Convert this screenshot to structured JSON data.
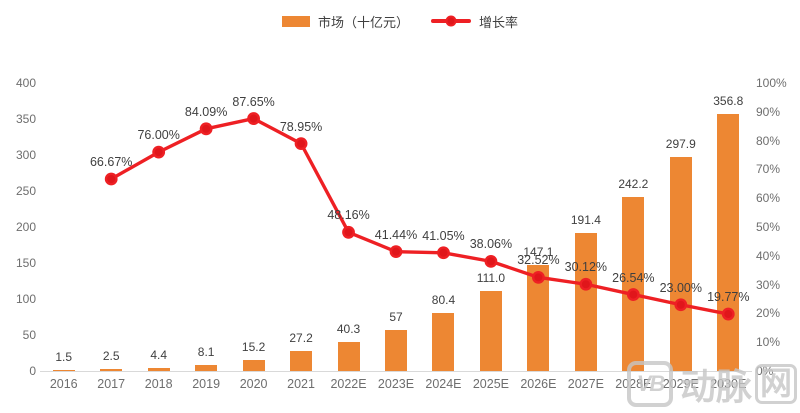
{
  "legend": {
    "items": [
      {
        "label": "市场（十亿元）",
        "marker": "bar-swatch",
        "color": "#ED8733"
      },
      {
        "label": "增长率",
        "marker": "line-swatch",
        "color": "#EE2024"
      }
    ]
  },
  "watermark": {
    "logo_text": "VB",
    "text_main": "动脉",
    "text_boxed": "网"
  },
  "chart_data": {
    "type": "bar",
    "subtype": "bar+line dual-axis combo",
    "title": "",
    "categories": [
      "2016",
      "2017",
      "2018",
      "2019",
      "2020",
      "2021",
      "2022E",
      "2023E",
      "2024E",
      "2025E",
      "2026E",
      "2027E",
      "2028E",
      "2029E",
      "2030E"
    ],
    "series": [
      {
        "name": "市场（十亿元）",
        "type": "bar",
        "axis": "left",
        "color": "#ED8733",
        "values": [
          1.5,
          2.5,
          4.4,
          8.1,
          15.2,
          27.2,
          40.3,
          57,
          80.4,
          111.0,
          147.1,
          191.4,
          242.2,
          297.9,
          356.8
        ],
        "labels": [
          "1.5",
          "2.5",
          "4.4",
          "8.1",
          "15.2",
          "27.2",
          "40.3",
          "57",
          "80.4",
          "111.0",
          "147.1",
          "191.4",
          "242.2",
          "297.9",
          "356.8"
        ]
      },
      {
        "name": "增长率",
        "type": "line",
        "axis": "right",
        "color": "#EE2024",
        "start_index": 1,
        "values": [
          66.67,
          76.0,
          84.09,
          87.65,
          78.95,
          48.16,
          41.44,
          41.05,
          38.06,
          32.52,
          30.12,
          26.54,
          23.0,
          19.77
        ],
        "labels": [
          "66.67%",
          "76.00%",
          "84.09%",
          "87.65%",
          "78.95%",
          "48.16%",
          "41.44%",
          "41.05%",
          "38.06%",
          "32.52%",
          "30.12%",
          "26.54%",
          "23.00%",
          "19.77%"
        ]
      }
    ],
    "left_axis": {
      "min": 0,
      "max": 400,
      "step": 50,
      "ticks": [
        "0",
        "50",
        "100",
        "150",
        "200",
        "250",
        "300",
        "350",
        "400"
      ]
    },
    "right_axis": {
      "min": 0,
      "max": 100,
      "step": 10,
      "ticks": [
        "0%",
        "10%",
        "20%",
        "30%",
        "40%",
        "50%",
        "60%",
        "70%",
        "80%",
        "90%",
        "100%"
      ]
    },
    "grid": false,
    "legend_position": "top-center",
    "background": "#ffffff"
  }
}
